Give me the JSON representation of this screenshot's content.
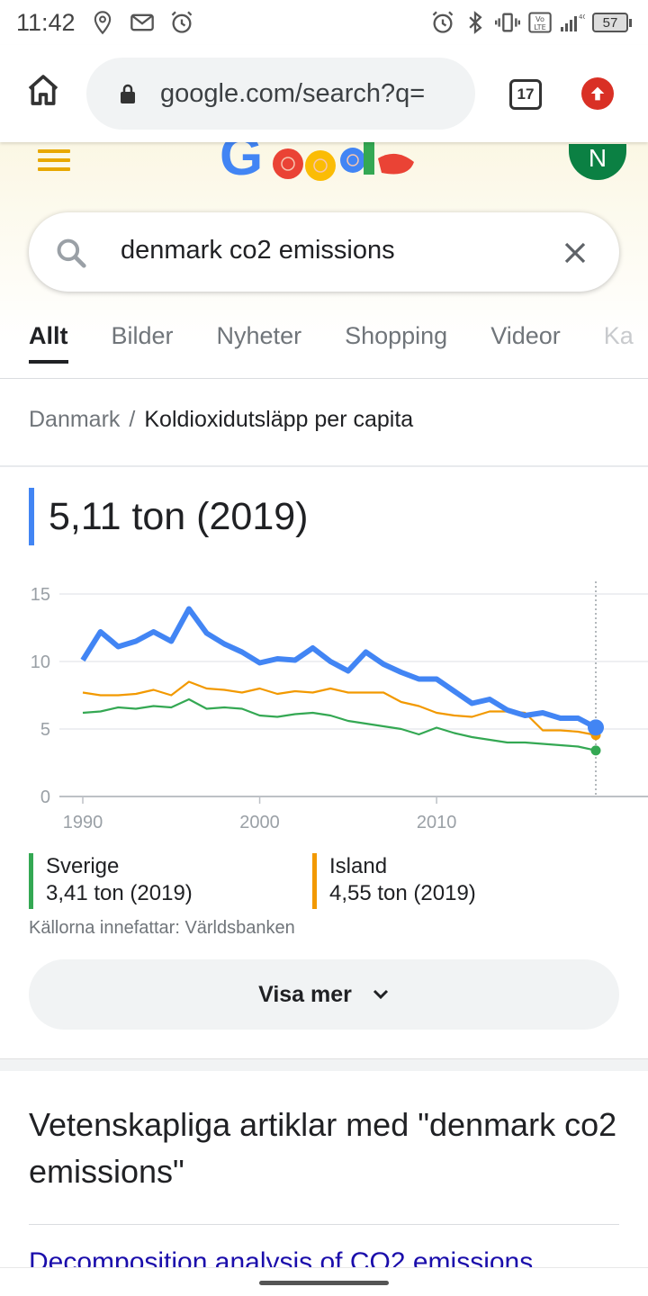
{
  "status_bar": {
    "time": "11:42",
    "battery": "57",
    "icons": [
      "location-icon",
      "gmail-icon",
      "alarm-icon",
      "alarm-icon",
      "bluetooth-icon",
      "vibrate-icon",
      "volte-icon",
      "signal-icon",
      "battery-icon"
    ]
  },
  "browser": {
    "url": "google.com/search?q=",
    "tab_count": "17"
  },
  "google": {
    "avatar_letter": "N",
    "query": "denmark co2 emissions",
    "tabs": [
      "Allt",
      "Bilder",
      "Nyheter",
      "Shopping",
      "Videor",
      "Ka"
    ],
    "active_tab": "Allt"
  },
  "card": {
    "breadcrumb": [
      "Danmark",
      "Koldioxidutsläpp per capita"
    ],
    "headline": "5,11 ton (2019)",
    "legend": [
      {
        "name": "Sverige",
        "value": "3,41 ton (2019)",
        "color": "#34a853"
      },
      {
        "name": "Island",
        "value": "4,55 ton (2019)",
        "color": "#f29900"
      }
    ],
    "source": "Källorna innefattar: Världsbanken",
    "more_label": "Visa mer"
  },
  "chart_data": {
    "type": "line",
    "title": "",
    "xlabel": "",
    "ylabel": "",
    "x": [
      1990,
      1991,
      1992,
      1993,
      1994,
      1995,
      1996,
      1997,
      1998,
      1999,
      2000,
      2001,
      2002,
      2003,
      2004,
      2005,
      2006,
      2007,
      2008,
      2009,
      2010,
      2011,
      2012,
      2013,
      2014,
      2015,
      2016,
      2017,
      2018,
      2019
    ],
    "xticks": [
      "1990",
      "2000",
      "2010"
    ],
    "xlim": [
      1990,
      2019
    ],
    "ylim": [
      0,
      15
    ],
    "yticks": [
      "0",
      "5",
      "10",
      "15"
    ],
    "grid": true,
    "series": [
      {
        "name": "Danmark",
        "color": "#4285f4",
        "values": [
          10.1,
          12.2,
          11.1,
          11.5,
          12.2,
          11.5,
          13.9,
          12.1,
          11.3,
          10.7,
          9.9,
          10.2,
          10.1,
          11.0,
          10.0,
          9.3,
          10.7,
          9.8,
          9.2,
          8.7,
          8.7,
          7.8,
          6.9,
          7.2,
          6.4,
          6.0,
          6.2,
          5.8,
          5.8,
          5.11
        ]
      },
      {
        "name": "Island",
        "color": "#f29900",
        "values": [
          7.7,
          7.5,
          7.5,
          7.6,
          7.9,
          7.5,
          8.5,
          8.0,
          7.9,
          7.7,
          8.0,
          7.6,
          7.8,
          7.7,
          8.0,
          7.7,
          7.7,
          7.7,
          7.0,
          6.7,
          6.2,
          6.0,
          5.9,
          6.3,
          6.3,
          6.2,
          4.9,
          4.9,
          4.8,
          4.55
        ]
      },
      {
        "name": "Sverige",
        "color": "#34a853",
        "values": [
          6.2,
          6.3,
          6.6,
          6.5,
          6.7,
          6.6,
          7.2,
          6.5,
          6.6,
          6.5,
          6.0,
          5.9,
          6.1,
          6.2,
          6.0,
          5.6,
          5.4,
          5.2,
          5.0,
          4.6,
          5.1,
          4.7,
          4.4,
          4.2,
          4.0,
          4.0,
          3.9,
          3.8,
          3.7,
          3.41
        ]
      }
    ]
  },
  "articles": {
    "heading": "Vetenskapliga artiklar med \"denmark co2 emissions\"",
    "first_link": "Decomposition analysis of CO2 emissions"
  }
}
